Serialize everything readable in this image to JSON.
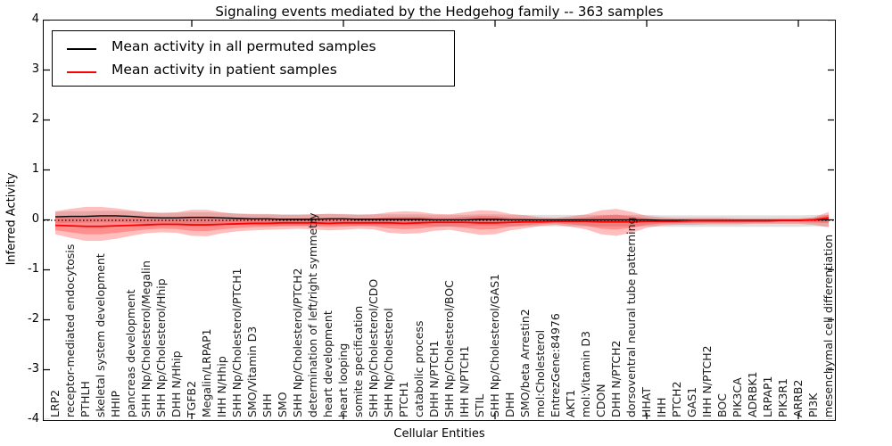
{
  "chart_data": {
    "type": "line",
    "title": "Signaling events mediated by the Hedgehog family -- 363 samples",
    "xlabel": "Cellular Entities",
    "ylabel": "Inferred Activity",
    "ylim": [
      -4,
      4
    ],
    "yticks": [
      4,
      3,
      2,
      1,
      0,
      -1,
      -2,
      -3,
      -4
    ],
    "yticklabels": [
      "4",
      "3",
      "2",
      "1",
      "0",
      "-1",
      "-2",
      "-3",
      "-4"
    ],
    "xtick_indices": [
      9,
      19,
      29,
      39,
      49
    ],
    "grid": "off",
    "legend_position": "upper left",
    "legend": [
      {
        "label": "Mean activity in all permuted samples",
        "color": "#000000"
      },
      {
        "label": "Mean activity in patient samples",
        "color": "#ff0000"
      }
    ],
    "zero_line": {
      "value": 0,
      "style": "dotted",
      "color": "#000000"
    },
    "categories": [
      "LRP2",
      "receptor-mediated endocytosis",
      "PTHLH",
      "skeletal system development",
      "HHIP",
      "pancreas development",
      "SHH Np/Cholesterol/Megalin",
      "SHH Np/Cholesterol/Hhip",
      "DHH N/Hhip",
      "TGFB2",
      "Megalin/LRPAP1",
      "IHH N/Hhip",
      "SHH Np/Cholesterol/PTCH1",
      "SMO/Vitamin D3",
      "SHH",
      "SMO",
      "SHH Np/Cholesterol/PTCH2",
      "determination of left/right symmetry",
      "heart development",
      "heart looping",
      "somite specification",
      "SHH Np/Cholesterol/CDO",
      "SHH Np/Cholesterol",
      "PTCH1",
      "catabolic process",
      "DHH N/PTCH1",
      "SHH Np/Cholesterol/BOC",
      "IHH N/PTCH1",
      "STIL",
      "SHH Np/Cholesterol/GAS1",
      "DHH",
      "SMO/beta Arrestin2",
      "mol:Cholesterol",
      "EntrezGene:84976",
      "AKT1",
      "mol:Vitamin D3",
      "CDON",
      "DHH N/PTCH2",
      "dorsoventral neural tube patterning",
      "HHAT",
      "IHH",
      "PTCH2",
      "GAS1",
      "IHH N/PTCH2",
      "BOC",
      "PIK3CA",
      "ADRBK1",
      "LRPAP1",
      "PIK3R1",
      "ARRB2",
      "PI3K",
      "mesenchymal cell differentiation"
    ],
    "series": [
      {
        "name": "Mean activity in all permuted samples",
        "color": "#000000",
        "values": [
          0.07,
          0.08,
          0.08,
          0.09,
          0.09,
          0.08,
          0.06,
          0.05,
          0.05,
          0.06,
          0.06,
          0.05,
          0.04,
          0.03,
          0.03,
          0.02,
          0.02,
          0.02,
          0.03,
          0.03,
          0.02,
          0.02,
          0.02,
          0.02,
          0.02,
          0.01,
          0.01,
          0.01,
          0.02,
          0.02,
          0.01,
          0.01,
          0.01,
          0.01,
          0.01,
          0.01,
          0.01,
          0.01,
          0.01,
          0.01,
          0.0,
          0.0,
          0.0,
          0.0,
          0.0,
          0.0,
          0.0,
          0.0,
          0.0,
          0.0,
          0.01,
          0.01
        ]
      },
      {
        "name": "Mean activity in patient samples",
        "color": "#ff0000",
        "values": [
          -0.1,
          -0.11,
          -0.12,
          -0.12,
          -0.11,
          -0.1,
          -0.09,
          -0.08,
          -0.08,
          -0.09,
          -0.09,
          -0.08,
          -0.07,
          -0.06,
          -0.06,
          -0.05,
          -0.05,
          -0.05,
          -0.06,
          -0.05,
          -0.05,
          -0.05,
          -0.05,
          -0.06,
          -0.05,
          -0.04,
          -0.04,
          -0.04,
          -0.05,
          -0.05,
          -0.04,
          -0.03,
          -0.03,
          -0.02,
          -0.02,
          -0.02,
          -0.03,
          -0.03,
          -0.03,
          -0.02,
          -0.02,
          -0.02,
          -0.01,
          -0.01,
          -0.01,
          -0.01,
          -0.01,
          -0.01,
          0.0,
          0.0,
          0.01,
          0.05
        ]
      }
    ],
    "bands": [
      {
        "name": "permuted-samples-std-band",
        "fill": "rgba(130,130,130,0.25)",
        "upper": [
          0.17,
          0.18,
          0.18,
          0.19,
          0.19,
          0.18,
          0.16,
          0.15,
          0.15,
          0.16,
          0.16,
          0.15,
          0.14,
          0.13,
          0.13,
          0.12,
          0.12,
          0.12,
          0.13,
          0.13,
          0.12,
          0.12,
          0.12,
          0.12,
          0.12,
          0.11,
          0.11,
          0.11,
          0.12,
          0.12,
          0.11,
          0.11,
          0.11,
          0.11,
          0.11,
          0.11,
          0.11,
          0.11,
          0.11,
          0.11,
          0.1,
          0.1,
          0.1,
          0.1,
          0.1,
          0.1,
          0.1,
          0.1,
          0.1,
          0.1,
          0.11,
          0.11
        ],
        "lower": [
          -0.06,
          -0.05,
          -0.05,
          -0.04,
          -0.04,
          -0.05,
          -0.07,
          -0.08,
          -0.08,
          -0.07,
          -0.07,
          -0.08,
          -0.09,
          -0.1,
          -0.1,
          -0.11,
          -0.11,
          -0.11,
          -0.1,
          -0.1,
          -0.11,
          -0.11,
          -0.11,
          -0.11,
          -0.11,
          -0.12,
          -0.12,
          -0.12,
          -0.11,
          -0.11,
          -0.12,
          -0.12,
          -0.12,
          -0.12,
          -0.12,
          -0.12,
          -0.12,
          -0.12,
          -0.12,
          -0.12,
          -0.13,
          -0.13,
          -0.13,
          -0.13,
          -0.13,
          -0.13,
          -0.13,
          -0.13,
          -0.13,
          -0.13,
          -0.12,
          -0.12
        ]
      },
      {
        "name": "patient-samples-std-band",
        "fill": "rgba(255,0,0,0.25)",
        "inner_core_factor": 0.55,
        "upper": [
          0.18,
          0.23,
          0.27,
          0.27,
          0.24,
          0.2,
          0.16,
          0.15,
          0.16,
          0.21,
          0.21,
          0.16,
          0.13,
          0.12,
          0.12,
          0.11,
          0.11,
          0.12,
          0.13,
          0.12,
          0.11,
          0.12,
          0.16,
          0.18,
          0.17,
          0.13,
          0.12,
          0.16,
          0.2,
          0.19,
          0.13,
          0.1,
          0.06,
          0.05,
          0.08,
          0.12,
          0.2,
          0.23,
          0.17,
          0.09,
          0.06,
          0.05,
          0.05,
          0.05,
          0.05,
          0.04,
          0.04,
          0.04,
          0.04,
          0.04,
          0.06,
          0.17
        ],
        "lower": [
          -0.28,
          -0.35,
          -0.41,
          -0.41,
          -0.37,
          -0.31,
          -0.26,
          -0.24,
          -0.25,
          -0.31,
          -0.32,
          -0.26,
          -0.22,
          -0.2,
          -0.19,
          -0.18,
          -0.17,
          -0.18,
          -0.2,
          -0.19,
          -0.17,
          -0.18,
          -0.25,
          -0.27,
          -0.26,
          -0.21,
          -0.19,
          -0.24,
          -0.29,
          -0.28,
          -0.2,
          -0.16,
          -0.11,
          -0.09,
          -0.13,
          -0.18,
          -0.28,
          -0.31,
          -0.25,
          -0.15,
          -0.1,
          -0.09,
          -0.09,
          -0.08,
          -0.08,
          -0.08,
          -0.07,
          -0.07,
          -0.07,
          -0.07,
          -0.09,
          -0.14
        ]
      }
    ]
  }
}
